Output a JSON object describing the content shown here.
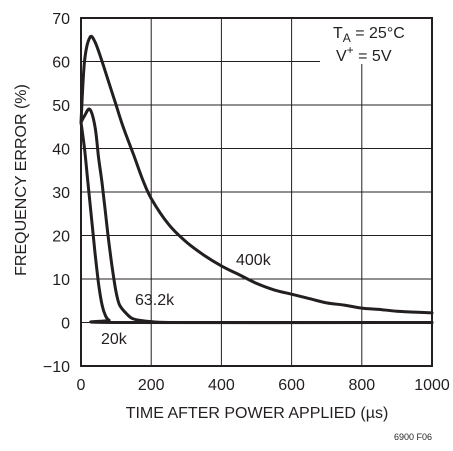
{
  "chart_data": {
    "type": "line",
    "xlabel": "TIME AFTER POWER APPLIED (µs)",
    "ylabel": "FREQUENCY ERROR (%)",
    "xlim": [
      0,
      1000
    ],
    "ylim": [
      -10,
      70
    ],
    "x_ticks": [
      0,
      200,
      400,
      600,
      800,
      1000
    ],
    "y_ticks": [
      -10,
      0,
      10,
      20,
      30,
      40,
      50,
      60,
      70
    ],
    "grid": true,
    "conditions": {
      "ta_main": "T",
      "ta_sub": "A",
      "ta_value": " = 25°C",
      "v_main": "V",
      "v_sup": "+",
      "v_value": " = 5V"
    },
    "figure_id": "6900 F06",
    "series": [
      {
        "name": "400k",
        "points": [
          [
            0,
            46
          ],
          [
            10,
            60
          ],
          [
            25,
            65.5
          ],
          [
            40,
            64.5
          ],
          [
            60,
            60
          ],
          [
            80,
            55
          ],
          [
            100,
            50
          ],
          [
            120,
            45
          ],
          [
            150,
            38.5
          ],
          [
            175,
            33
          ],
          [
            200,
            28.5
          ],
          [
            250,
            22.5
          ],
          [
            300,
            18.5
          ],
          [
            350,
            15.5
          ],
          [
            400,
            13
          ],
          [
            450,
            11
          ],
          [
            500,
            9
          ],
          [
            550,
            7.5
          ],
          [
            600,
            6.5
          ],
          [
            650,
            5.5
          ],
          [
            700,
            4.5
          ],
          [
            750,
            4
          ],
          [
            800,
            3.3
          ],
          [
            850,
            3
          ],
          [
            900,
            2.6
          ],
          [
            950,
            2.4
          ],
          [
            1000,
            2.2
          ]
        ]
      },
      {
        "name": "63.2k",
        "points": [
          [
            0,
            46
          ],
          [
            10,
            47.5
          ],
          [
            25,
            49
          ],
          [
            40,
            45
          ],
          [
            50,
            38
          ],
          [
            60,
            32
          ],
          [
            70,
            25
          ],
          [
            80,
            18
          ],
          [
            90,
            12
          ],
          [
            100,
            7
          ],
          [
            110,
            4
          ],
          [
            130,
            2
          ],
          [
            150,
            0.8
          ],
          [
            200,
            0.2
          ],
          [
            250,
            0
          ],
          [
            300,
            0
          ],
          [
            1000,
            0
          ]
        ]
      },
      {
        "name": "20k",
        "points": [
          [
            0,
            46
          ],
          [
            10,
            40
          ],
          [
            20,
            32
          ],
          [
            30,
            24
          ],
          [
            40,
            16
          ],
          [
            50,
            9
          ],
          [
            60,
            4
          ],
          [
            70,
            1.5
          ],
          [
            80,
            0.5
          ],
          [
            100,
            0
          ],
          [
            1000,
            0
          ]
        ]
      }
    ]
  }
}
